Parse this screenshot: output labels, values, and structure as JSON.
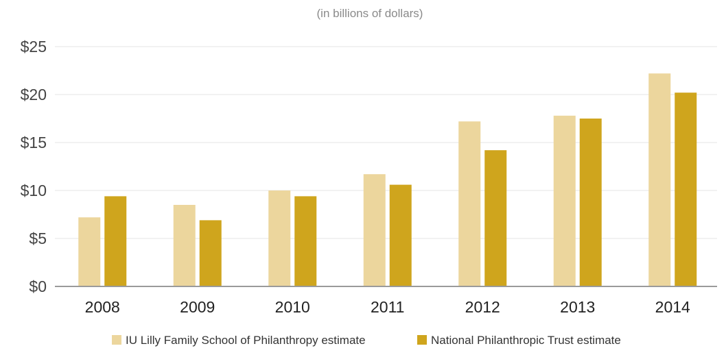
{
  "chart_data": {
    "type": "bar",
    "subtitle": "(in billions of dollars)",
    "categories": [
      "2008",
      "2009",
      "2010",
      "2011",
      "2012",
      "2013",
      "2014"
    ],
    "series": [
      {
        "name": "IU Lilly Family School of Philanthropy estimate",
        "color": "#ecd69d",
        "values": [
          7.2,
          8.5,
          10.0,
          11.7,
          17.2,
          17.8,
          22.2
        ]
      },
      {
        "name": "National Philanthropic Trust estimate",
        "color": "#cfa51d",
        "values": [
          9.4,
          6.9,
          9.4,
          10.6,
          14.2,
          17.5,
          20.2
        ]
      }
    ],
    "ylim": [
      0,
      25
    ],
    "yticks": [
      0,
      5,
      10,
      15,
      20,
      25
    ],
    "ytick_labels": [
      "$0",
      "$5",
      "$10",
      "$15",
      "$20",
      "$25"
    ],
    "xlabel": "",
    "ylabel": "",
    "grid": true,
    "legend": "bottom"
  }
}
